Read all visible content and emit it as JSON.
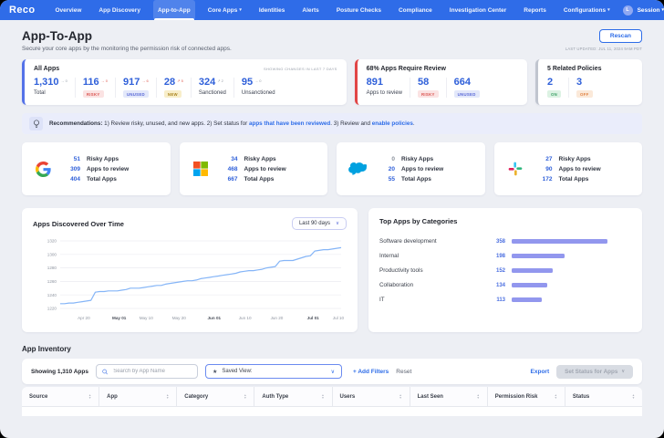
{
  "app": {
    "logo": "Reco"
  },
  "colors": {
    "nav_bg": "#2f6ce8",
    "accent": "#2d6ce8",
    "number_blue": "#2e5fd9",
    "line_color": "#85b5f7",
    "bar_color": "#9297ee",
    "card_border_blue": "#5472e8",
    "card_border_red": "#e14646",
    "card_border_gray": "#c0c5cf"
  },
  "nav": {
    "items": [
      {
        "label": "Overview"
      },
      {
        "label": "App Discovery"
      },
      {
        "label": "App-to-App",
        "active": true
      },
      {
        "label": "Core Apps",
        "dropdown": true
      },
      {
        "label": "Identities"
      },
      {
        "label": "Alerts"
      },
      {
        "label": "Posture Checks"
      },
      {
        "label": "Compliance"
      },
      {
        "label": "Investigation Center"
      },
      {
        "label": "Reports"
      },
      {
        "label": "Configurations",
        "dropdown": true
      }
    ],
    "right": {
      "avatar": "L",
      "session": "Session",
      "help": "?"
    }
  },
  "header": {
    "title": "App-To-App",
    "subtitle": "Secure your core apps by the monitoring the permission risk of connected apps.",
    "rescan_label": "Rescan",
    "last_updated": "LAST UPDATED: JUL 11, 2024 9AM PDT"
  },
  "summary": {
    "all_apps": {
      "title": "All Apps",
      "note": "SHOWING CHANGES IN LAST 7 DAYS",
      "stats": [
        {
          "value": "1,310",
          "delta": "→ 0",
          "delta_tone": "gray",
          "label": "Total"
        },
        {
          "value": "116",
          "delta": "→ 0",
          "delta_tone": "red",
          "badge": "RISKY",
          "badge_tone": "risky"
        },
        {
          "value": "917",
          "delta": "→ 6",
          "delta_tone": "red",
          "badge": "UNUSED",
          "badge_tone": "unused"
        },
        {
          "value": "28",
          "delta": "↗ 5",
          "delta_tone": "red",
          "badge": "NEW",
          "badge_tone": "new"
        },
        {
          "value": "324",
          "delta": "↗ 2",
          "delta_tone": "gray",
          "label": "Sanctioned"
        },
        {
          "value": "95",
          "delta": "→ 0",
          "delta_tone": "gray",
          "label": "Unsanctioned"
        }
      ]
    },
    "review": {
      "title": "68% Apps Require Review",
      "stats": [
        {
          "value": "891",
          "label": "Apps to review"
        },
        {
          "value": "58",
          "badge": "RISKY",
          "badge_tone": "risky"
        },
        {
          "value": "664",
          "badge": "UNUSED",
          "badge_tone": "unused"
        }
      ]
    },
    "policies": {
      "title": "5 Related Policies",
      "stats": [
        {
          "value": "2",
          "badge": "ON",
          "badge_tone": "on"
        },
        {
          "value": "3",
          "badge": "OFF",
          "badge_tone": "off"
        }
      ]
    }
  },
  "recommendations": {
    "label": "Recommendations:",
    "segments": [
      {
        "text": " 1) Review risky, unused, and new apps. 2) Set status for ",
        "link": false
      },
      {
        "text": "apps that have been reviewed",
        "link": true
      },
      {
        "text": ". 3) Review and ",
        "link": false
      },
      {
        "text": "enable policies",
        "link": true
      },
      {
        "text": ".",
        "link": false
      }
    ]
  },
  "vendors": [
    {
      "name": "google",
      "stats": [
        {
          "value": "51",
          "label": "Risky Apps"
        },
        {
          "value": "309",
          "label": "Apps to review"
        },
        {
          "value": "404",
          "label": "Total Apps"
        }
      ]
    },
    {
      "name": "microsoft",
      "stats": [
        {
          "value": "34",
          "label": "Risky Apps"
        },
        {
          "value": "468",
          "label": "Apps to review"
        },
        {
          "value": "667",
          "label": "Total Apps"
        }
      ]
    },
    {
      "name": "salesforce",
      "stats": [
        {
          "value": "0",
          "label": "Risky Apps",
          "muted": true
        },
        {
          "value": "20",
          "label": "Apps to review"
        },
        {
          "value": "55",
          "label": "Total Apps"
        }
      ]
    },
    {
      "name": "slack",
      "stats": [
        {
          "value": "27",
          "label": "Risky Apps"
        },
        {
          "value": "90",
          "label": "Apps to review"
        },
        {
          "value": "172",
          "label": "Total Apps"
        }
      ]
    }
  ],
  "chart_data": [
    {
      "type": "line",
      "title": "Apps Discovered Over Time",
      "range_selector": "Last 90 days",
      "ylim": [
        1220,
        1320
      ],
      "yticks": [
        1220,
        1240,
        1260,
        1280,
        1300,
        1320
      ],
      "grid": true,
      "xticks": [
        {
          "label": "Apr 20",
          "pos": 0.084,
          "bold": false
        },
        {
          "label": "May 01",
          "pos": 0.21,
          "bold": true
        },
        {
          "label": "May 10",
          "pos": 0.306,
          "bold": false
        },
        {
          "label": "May 20",
          "pos": 0.423,
          "bold": false
        },
        {
          "label": "Jun 01",
          "pos": 0.548,
          "bold": true
        },
        {
          "label": "Jun 10",
          "pos": 0.658,
          "bold": false
        },
        {
          "label": "Jun 20",
          "pos": 0.771,
          "bold": false
        },
        {
          "label": "Jul 01",
          "pos": 0.9,
          "bold": true
        },
        {
          "label": "Jul 10",
          "pos": 0.99,
          "bold": false
        }
      ],
      "values": [
        1227,
        1227,
        1228,
        1228,
        1229,
        1230,
        1231,
        1232,
        1244,
        1245,
        1245,
        1246,
        1246,
        1246,
        1247,
        1248,
        1250,
        1250,
        1250,
        1251,
        1252,
        1253,
        1254,
        1254,
        1256,
        1257,
        1258,
        1259,
        1260,
        1261,
        1261,
        1262,
        1264,
        1265,
        1266,
        1267,
        1268,
        1269,
        1270,
        1271,
        1272,
        1274,
        1275,
        1276,
        1276,
        1277,
        1278,
        1280,
        1281,
        1282,
        1290,
        1291,
        1291,
        1291,
        1293,
        1295,
        1297,
        1298,
        1305,
        1306,
        1307,
        1307,
        1308,
        1309,
        1310
      ]
    },
    {
      "type": "bar",
      "title": "Top Apps by Categories",
      "categories": [
        "Software development",
        "Internal",
        "Productivity tools",
        "Collaboration",
        "IT"
      ],
      "values": [
        358,
        198,
        152,
        134,
        113
      ],
      "orientation": "horizontal"
    }
  ],
  "inventory": {
    "section_title": "App Inventory",
    "showing": "Showing 1,310 Apps",
    "search_placeholder": "Search by App Name",
    "saved_view_label": "Saved View:",
    "add_filters": "+ Add Filters",
    "reset": "Reset",
    "export": "Export",
    "set_status": "Set Status for Apps",
    "columns": [
      "Source",
      "App",
      "Category",
      "Auth Type",
      "Users",
      "Last Seen",
      "Permission Risk",
      "Status"
    ]
  }
}
